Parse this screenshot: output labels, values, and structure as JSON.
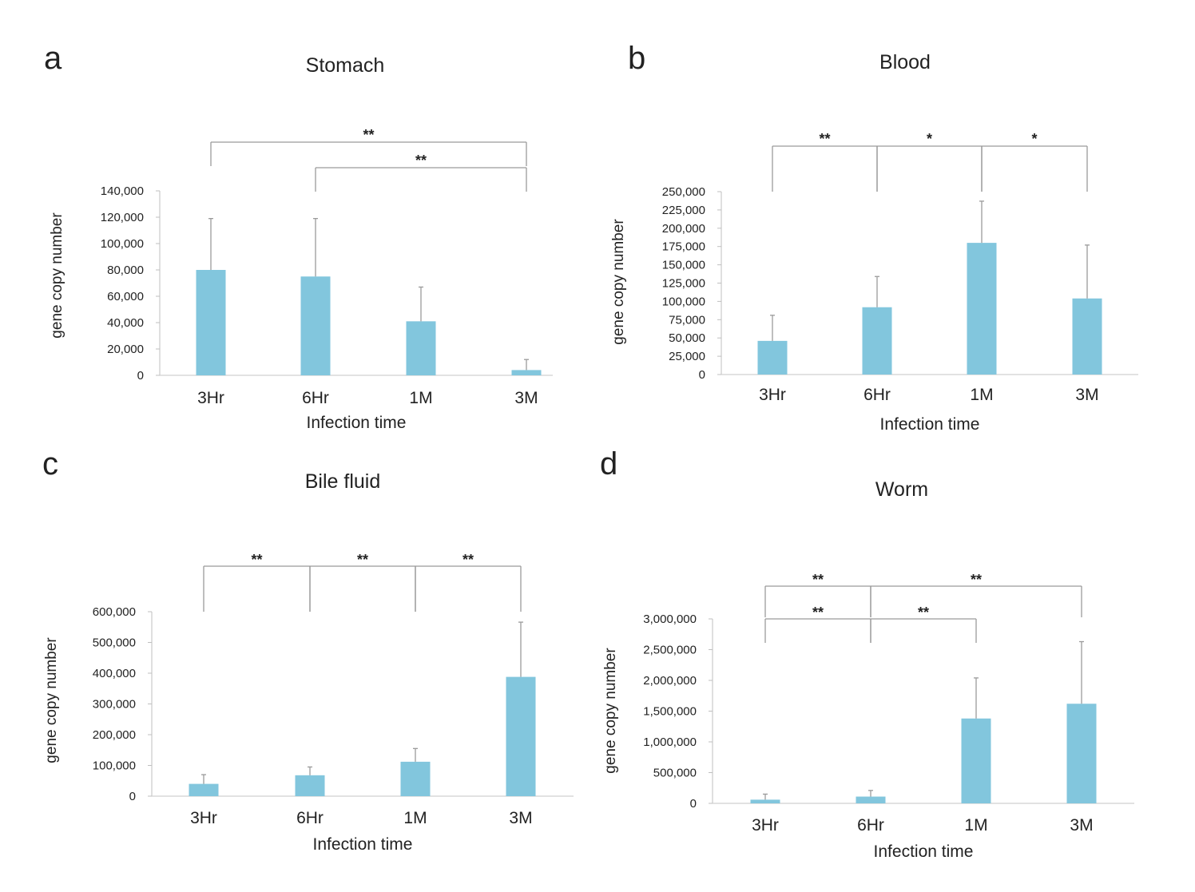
{
  "chart_data": [
    {
      "panel": "a",
      "type": "bar",
      "title": "Stomach",
      "xlabel": "Infection time",
      "ylabel": "gene copy number",
      "categories": [
        "3Hr",
        "6Hr",
        "1M",
        "3M"
      ],
      "values": [
        80000,
        75000,
        41000,
        4000
      ],
      "errors": [
        39000,
        44000,
        26000,
        8000
      ],
      "ylim": [
        0,
        140000
      ],
      "yticks": [
        0,
        20000,
        40000,
        60000,
        80000,
        100000,
        120000,
        140000
      ],
      "ytick_labels": [
        "0",
        "20,000",
        "40,000",
        "60,000",
        "80,000",
        "100,000",
        "120,000",
        "140,000"
      ],
      "bar_color": "#82c6dd",
      "significance": [
        {
          "from": 0,
          "to": 3,
          "label": "**",
          "level": 1
        },
        {
          "from": 1,
          "to": 3,
          "label": "**",
          "level": 0
        }
      ]
    },
    {
      "panel": "b",
      "type": "bar",
      "title": "Blood",
      "xlabel": "Infection time",
      "ylabel": "gene copy number",
      "categories": [
        "3Hr",
        "6Hr",
        "1M",
        "3M"
      ],
      "values": [
        46000,
        92000,
        180000,
        104000
      ],
      "errors": [
        35000,
        42000,
        57000,
        73000
      ],
      "ylim": [
        0,
        250000
      ],
      "yticks": [
        0,
        25000,
        50000,
        75000,
        100000,
        125000,
        150000,
        175000,
        200000,
        225000,
        250000
      ],
      "ytick_labels": [
        "0",
        "25,000",
        "50,000",
        "75,000",
        "100,000",
        "125,000",
        "150,000",
        "175,000",
        "200,000",
        "225,000",
        "250,000"
      ],
      "bar_color": "#82c6dd",
      "significance": [
        {
          "from": 0,
          "to": 1,
          "label": "**",
          "level": 0
        },
        {
          "from": 1,
          "to": 2,
          "label": "*",
          "level": 0
        },
        {
          "from": 2,
          "to": 3,
          "label": "*",
          "level": 0
        }
      ]
    },
    {
      "panel": "c",
      "type": "bar",
      "title": "Bile fluid",
      "xlabel": "Infection time",
      "ylabel": "gene copy number",
      "categories": [
        "3Hr",
        "6Hr",
        "1M",
        "3M"
      ],
      "values": [
        40000,
        68000,
        112000,
        388000
      ],
      "errors": [
        30000,
        27000,
        43000,
        178000
      ],
      "ylim": [
        0,
        600000
      ],
      "yticks": [
        0,
        100000,
        200000,
        300000,
        400000,
        500000,
        600000
      ],
      "ytick_labels": [
        "0",
        "100,000",
        "200,000",
        "300,000",
        "400,000",
        "500,000",
        "600,000"
      ],
      "bar_color": "#82c6dd",
      "significance": [
        {
          "from": 0,
          "to": 1,
          "label": "**",
          "level": 0
        },
        {
          "from": 1,
          "to": 2,
          "label": "**",
          "level": 0
        },
        {
          "from": 2,
          "to": 3,
          "label": "**",
          "level": 0
        }
      ]
    },
    {
      "panel": "d",
      "type": "bar",
      "title": "Worm",
      "xlabel": "Infection time",
      "ylabel": "gene copy number",
      "categories": [
        "3Hr",
        "6Hr",
        "1M",
        "3M"
      ],
      "values": [
        60000,
        110000,
        1380000,
        1620000
      ],
      "errors": [
        90000,
        100000,
        660000,
        1010000
      ],
      "ylim": [
        0,
        3000000
      ],
      "yticks": [
        0,
        500000,
        1000000,
        1500000,
        2000000,
        2500000,
        3000000
      ],
      "ytick_labels": [
        "0",
        "500,000",
        "1,000,000",
        "1,500,000",
        "2,000,000",
        "2,500,000",
        "3,000,000"
      ],
      "bar_color": "#82c6dd",
      "significance": [
        {
          "from": 0,
          "to": 1,
          "label": "**",
          "level": 0
        },
        {
          "from": 1,
          "to": 2,
          "label": "**",
          "level": 0
        },
        {
          "from": 0,
          "to": 1,
          "label": "**",
          "level": 1
        },
        {
          "from": 1,
          "to": 3,
          "label": "**",
          "level": 1
        }
      ]
    }
  ]
}
